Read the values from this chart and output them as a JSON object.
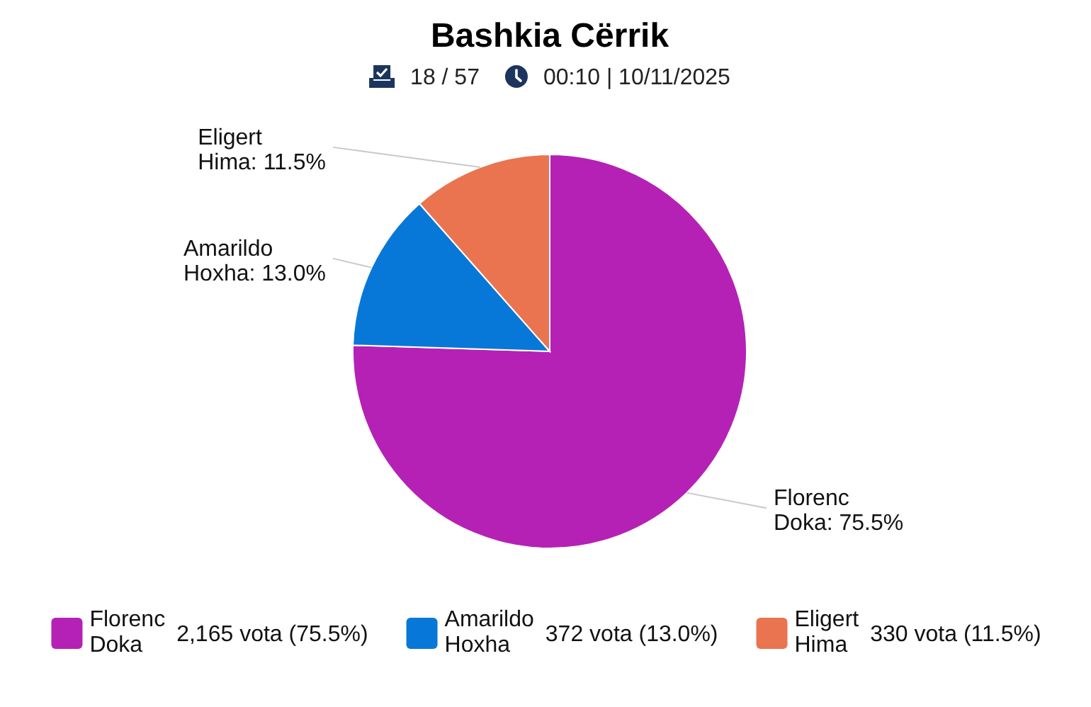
{
  "chart_data": {
    "type": "pie",
    "title": "Bashkia Cërrik",
    "subtitle": "18 / 57",
    "categories": [
      "Florenc Doka",
      "Amarildo Hoxha",
      "Eligert Hima"
    ],
    "values": [
      75.5,
      13.0,
      11.5
    ],
    "colors": [
      "#b521b5",
      "#0778d8",
      "#e9744f"
    ],
    "value_labels": [
      "Florenc Doka: 75.5%",
      "Amarildo Hoxha: 13.0%",
      "Eligert Hima: 11.5%"
    ],
    "annotations": [
      "00:10 | 10/11/2025",
      "2,165 vota (75.5%)",
      "372 vota (13.0%)",
      "330 vota (11.5%)"
    ],
    "legend": "bottom"
  }
}
